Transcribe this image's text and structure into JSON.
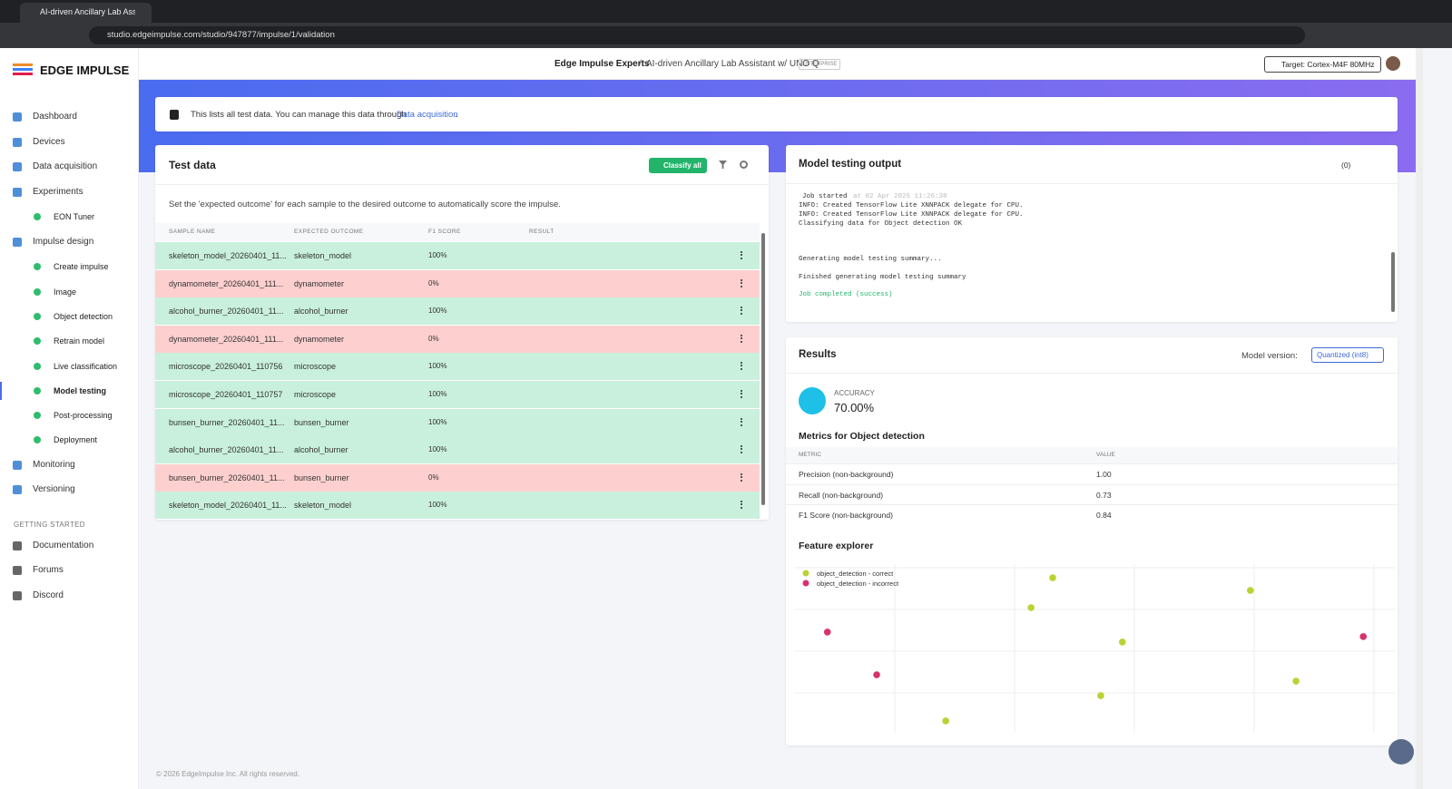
{
  "browser": {
    "tab_title": "AI-driven Ancillary Lab Assistant",
    "url": "studio.edgeimpulse.com/studio/947877/impulse/1/validation"
  },
  "sidebar": {
    "logo": "EDGE IMPULSE",
    "items": [
      {
        "label": "Dashboard"
      },
      {
        "label": "Devices"
      },
      {
        "label": "Data acquisition"
      },
      {
        "label": "Experiments",
        "children": [
          {
            "label": "EON Tuner"
          }
        ]
      },
      {
        "label": "Impulse design",
        "children": [
          {
            "label": "Create impulse"
          },
          {
            "label": "Image"
          },
          {
            "label": "Object detection"
          },
          {
            "label": "Retrain model"
          },
          {
            "label": "Live classification"
          },
          {
            "label": "Model testing",
            "active": true
          },
          {
            "label": "Post-processing"
          },
          {
            "label": "Deployment"
          }
        ]
      },
      {
        "label": "Monitoring"
      },
      {
        "label": "Versioning"
      }
    ],
    "section": "GETTING STARTED",
    "links": [
      "Documentation",
      "Forums",
      "Discord"
    ]
  },
  "header": {
    "org": "Edge Impulse Experts",
    "separator": "/",
    "project": "AI-driven Ancillary Lab Assistant w/ UNO Q",
    "badge": "ENTERPRISE",
    "target": "Target: Cortex-M4F 80MHz"
  },
  "banner": {
    "text": "This lists all test data. You can manage this data through",
    "link": "Data acquisition",
    "end": "."
  },
  "test_data": {
    "title": "Test data",
    "button": "Classify all",
    "description": "Set the 'expected outcome' for each sample to the desired outcome to automatically score the impulse.",
    "columns": [
      "SAMPLE NAME",
      "EXPECTED OUTCOME",
      "F1 SCORE",
      "RESULT"
    ],
    "rows": [
      {
        "name": "skeleton_model_20260401_11...",
        "expected": "skeleton_model",
        "f1": "100%",
        "color": "#c9f0dc"
      },
      {
        "name": "dynamometer_20260401_111...",
        "expected": "dynamometer",
        "f1": "0%",
        "color": "#fdd0cf"
      },
      {
        "name": "alcohol_burner_20260401_11...",
        "expected": "alcohol_burner",
        "f1": "100%",
        "color": "#c9f0dc"
      },
      {
        "name": "dynamometer_20260401_111...",
        "expected": "dynamometer",
        "f1": "0%",
        "color": "#fdd0cf"
      },
      {
        "name": "microscope_20260401_110756",
        "expected": "microscope",
        "f1": "100%",
        "color": "#c9f0dc"
      },
      {
        "name": "microscope_20260401_110757",
        "expected": "microscope",
        "f1": "100%",
        "color": "#c9f0dc"
      },
      {
        "name": "bunsen_burner_20260401_11...",
        "expected": "bunsen_burner",
        "f1": "100%",
        "color": "#c9f0dc"
      },
      {
        "name": "alcohol_burner_20260401_11...",
        "expected": "alcohol_burner",
        "f1": "100%",
        "color": "#c9f0dc"
      },
      {
        "name": "bunsen_burner_20260401_11...",
        "expected": "bunsen_burner",
        "f1": "0%",
        "color": "#fdd0cf"
      },
      {
        "name": "skeleton_model_20260401_11...",
        "expected": "skeleton_model",
        "f1": "100%",
        "color": "#c9f0dc"
      }
    ]
  },
  "model_output": {
    "title": "Model testing output",
    "count": "(0)",
    "job_started": "Job started",
    "timestamp": "at 02 Apr 2026 11:26:38",
    "lines": [
      "INFO: Created TensorFlow Lite XNNPACK delegate for CPU.",
      "INFO: Created TensorFlow Lite XNNPACK delegate for CPU.",
      "Classifying data for Object detection OK"
    ],
    "summary": [
      "Generating model testing summary...",
      "Finished generating model testing summary"
    ],
    "success": "Job completed (success)"
  },
  "results": {
    "title": "Results",
    "model_version_label": "Model version:",
    "model_version": "Quantized (int8)",
    "accuracy_label": "ACCURACY",
    "accuracy": "70.00%",
    "metrics_title": "Metrics for Object detection",
    "metric_columns": [
      "METRIC",
      "VALUE"
    ],
    "metrics": [
      [
        "Precision (non-background)",
        "1.00"
      ],
      [
        "Recall (non-background)",
        "0.73"
      ],
      [
        "F1 Score (non-background)",
        "0.84"
      ]
    ]
  },
  "feature_explorer": {
    "title": "Feature explorer",
    "type": "scatter",
    "xlim": [
      0,
      100
    ],
    "ylim": [
      0,
      100
    ],
    "series": [
      {
        "name": "object_detection - correct",
        "color": "#b8d335",
        "x": [
          42.9,
          39.3,
          75.8,
          54.5,
          83.4,
          50.9,
          25.1
        ],
        "y": [
          91.9,
          74.2,
          84.4,
          53.8,
          30.6,
          22.0,
          7.0
        ]
      },
      {
        "name": "object_detection - incorrect",
        "color": "#d6336c",
        "x": [
          5.4,
          13.6,
          94.6
        ],
        "y": [
          59.7,
          34.4,
          57.0
        ]
      }
    ]
  },
  "footer": "© 2026 EdgeImpulse Inc. All rights reserved."
}
